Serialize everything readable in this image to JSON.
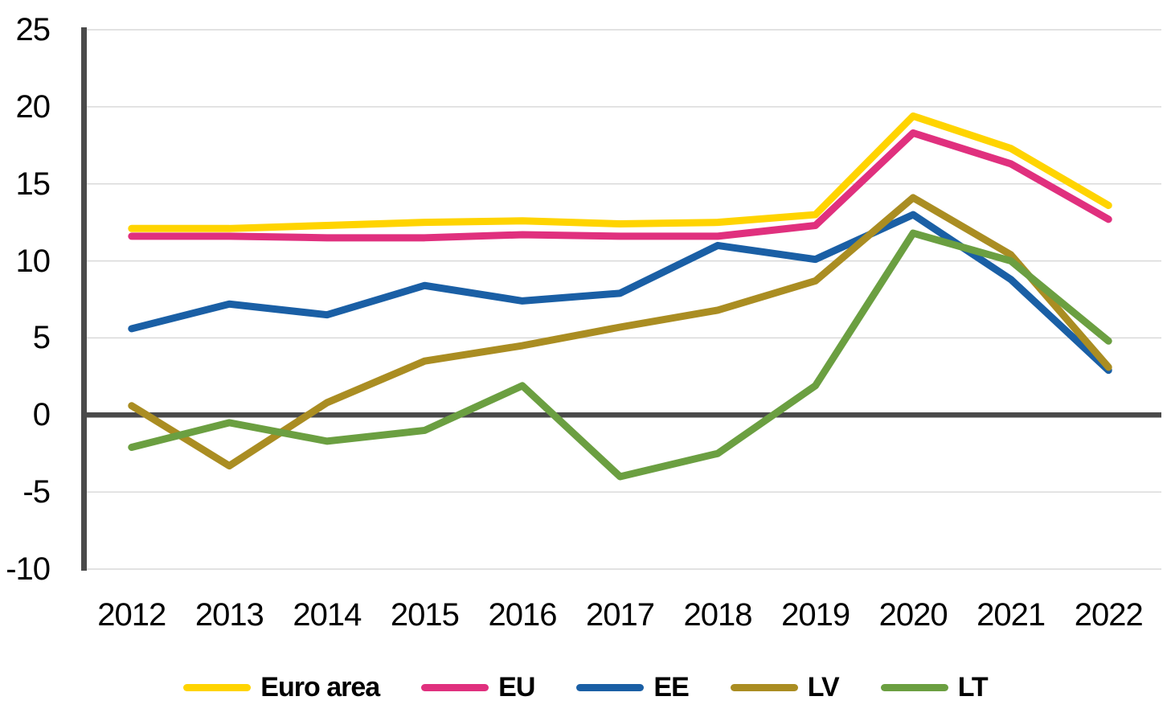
{
  "chart_data": {
    "type": "line",
    "title": "",
    "categories": [
      "2012",
      "2013",
      "2014",
      "2015",
      "2016",
      "2017",
      "2018",
      "2019",
      "2020",
      "2021",
      "2022"
    ],
    "series": [
      {
        "name": "Euro area",
        "color": "#FFD400",
        "values": [
          12.1,
          12.1,
          12.3,
          12.5,
          12.6,
          12.4,
          12.5,
          13.0,
          19.4,
          17.3,
          13.6
        ]
      },
      {
        "name": "EU",
        "color": "#E0307E",
        "values": [
          11.6,
          11.6,
          11.5,
          11.5,
          11.7,
          11.6,
          11.6,
          12.3,
          18.3,
          16.3,
          12.7
        ]
      },
      {
        "name": "EE",
        "color": "#1A5FA5",
        "values": [
          5.6,
          7.2,
          6.5,
          8.4,
          7.4,
          7.9,
          11.0,
          10.1,
          13.0,
          8.8,
          2.9
        ]
      },
      {
        "name": "LV",
        "color": "#AA8D22",
        "values": [
          0.6,
          -3.3,
          0.8,
          3.5,
          4.5,
          5.7,
          6.8,
          8.7,
          14.1,
          10.4,
          3.1
        ]
      },
      {
        "name": "LT",
        "color": "#6B9F41",
        "values": [
          -2.1,
          -0.5,
          -1.7,
          -1.0,
          1.9,
          -4.0,
          -2.5,
          1.9,
          11.8,
          10.0,
          4.8
        ]
      }
    ],
    "ylim": [
      -10,
      25
    ],
    "y_ticks": [
      25,
      20,
      15,
      10,
      5,
      0,
      -5,
      -10
    ],
    "grid": "horizontal",
    "zero_line": true,
    "legend_position": "bottom",
    "axis_color": "#4A4A4A",
    "gridline_color": "#D9D9D9",
    "label_color": "#000000"
  }
}
